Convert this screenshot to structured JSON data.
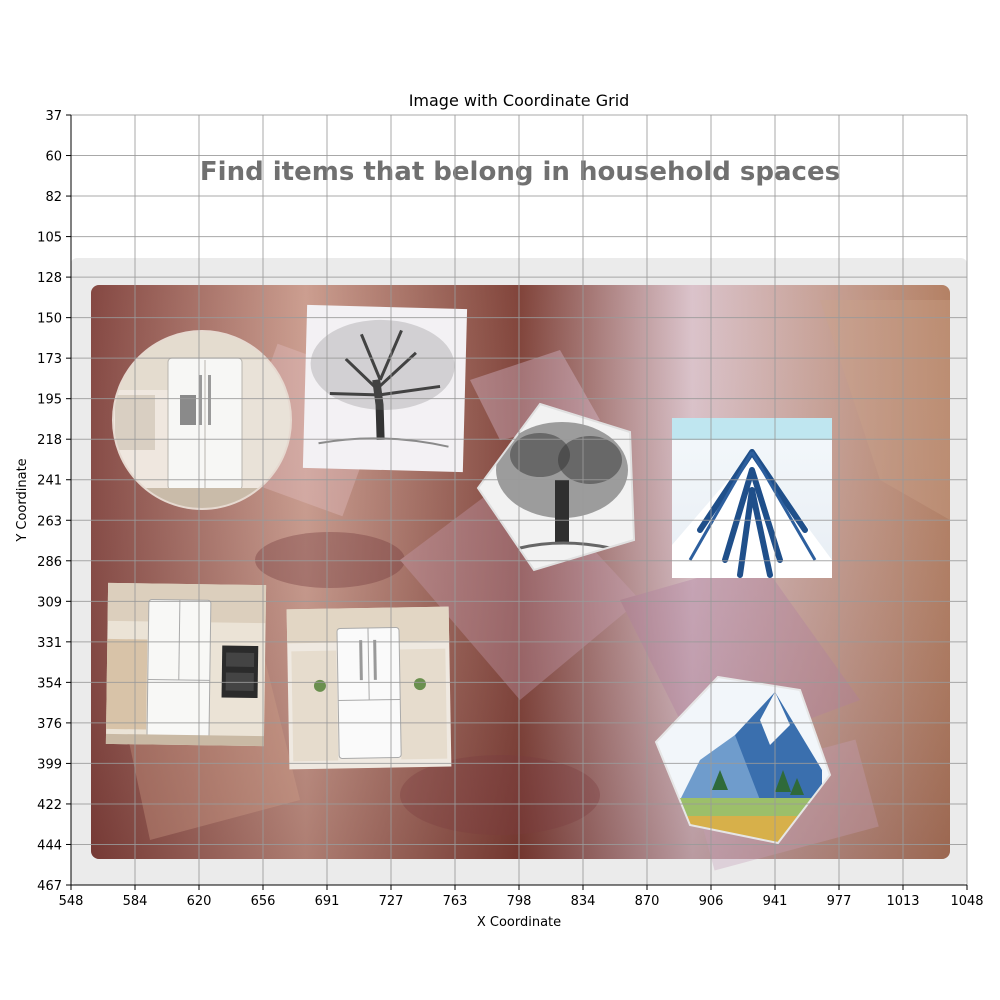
{
  "figure": {
    "title": "Image with Coordinate Grid",
    "xlabel": "X Coordinate",
    "ylabel": "Y Coordinate",
    "x_ticks": [
      "548",
      "584",
      "620",
      "656",
      "691",
      "727",
      "763",
      "798",
      "834",
      "870",
      "906",
      "941",
      "977",
      "1013",
      "1048"
    ],
    "y_ticks": [
      "37",
      "60",
      "82",
      "105",
      "128",
      "150",
      "173",
      "195",
      "218",
      "241",
      "263",
      "286",
      "309",
      "331",
      "354",
      "376",
      "399",
      "422",
      "444",
      "467"
    ],
    "x_range": [
      548,
      1048
    ],
    "y_range": [
      37,
      467
    ],
    "grid": true
  },
  "screen": {
    "instruction": "Find items that belong in household spaces",
    "tiles": [
      {
        "id": "fridge-circle",
        "content": "refrigerator",
        "shape": "circle"
      },
      {
        "id": "tree-square",
        "content": "tree",
        "shape": "square"
      },
      {
        "id": "tree-pentagon",
        "content": "tree",
        "shape": "pentagon"
      },
      {
        "id": "mountain-square",
        "content": "mountain",
        "shape": "square"
      },
      {
        "id": "fridge-kitchen-left",
        "content": "refrigerator",
        "shape": "square"
      },
      {
        "id": "fridge-kitchen-center",
        "content": "refrigerator",
        "shape": "square"
      },
      {
        "id": "mountain-hexagon",
        "content": "mountain",
        "shape": "hexagon"
      }
    ]
  },
  "colors": {
    "board_bg": "#8a4a44",
    "frame_bg": "#ebebeb",
    "banner_text": "#707070"
  }
}
